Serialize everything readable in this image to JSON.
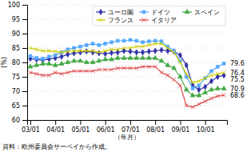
{
  "chart_data": {
    "type": "line",
    "xlabel": "（年月）",
    "ylabel": "(%)",
    "source": "資料：欧州委員会サーベイから作成。",
    "categories": [
      "03/01",
      null,
      null,
      null,
      "04/01",
      null,
      null,
      null,
      "05/01",
      null,
      null,
      null,
      "06/01",
      null,
      null,
      null,
      "07/01",
      null,
      null,
      null,
      "08/01",
      null,
      null,
      null,
      "09/01",
      null,
      null,
      null,
      "10/01",
      null,
      null,
      null
    ],
    "ylim": [
      60,
      100
    ],
    "yticks": [
      60,
      65,
      70,
      75,
      80,
      85,
      90,
      95,
      100
    ],
    "grid": true,
    "legend": "upper right",
    "series": [
      {
        "name": "ユーロ圏",
        "color": "#3333aa",
        "marker": "diamond",
        "values": [
          81.3,
          81.0,
          80.8,
          81.2,
          81.5,
          82.0,
          82.8,
          83.2,
          83.5,
          83.8,
          83.5,
          83.2,
          83.0,
          83.3,
          83.5,
          84.0,
          83.8,
          83.5,
          83.5,
          83.8,
          84.0,
          84.3,
          84.0,
          83.8,
          82.5,
          79.0,
          72.0,
          70.5,
          71.5,
          73.5,
          75.0,
          75.5
        ]
      },
      {
        "name": "ドイツ",
        "color": "#55aaff",
        "marker": "square",
        "values": [
          82.2,
          81.5,
          81.3,
          82.0,
          82.5,
          83.5,
          84.5,
          85.0,
          85.5,
          86.0,
          86.5,
          86.0,
          86.5,
          87.0,
          87.5,
          87.5,
          87.8,
          87.5,
          87.0,
          87.3,
          87.5,
          87.3,
          85.5,
          84.0,
          80.5,
          75.0,
          71.0,
          72.0,
          74.5,
          77.0,
          78.5,
          79.6
        ]
      },
      {
        "name": "スペイン",
        "color": "#44aa44",
        "marker": "triangle",
        "values": [
          78.5,
          79.0,
          79.5,
          79.5,
          79.0,
          79.5,
          80.0,
          80.5,
          80.5,
          80.0,
          80.0,
          80.5,
          81.0,
          81.0,
          81.5,
          81.5,
          81.5,
          81.5,
          81.5,
          81.5,
          81.5,
          80.5,
          79.0,
          78.0,
          75.0,
          70.5,
          68.5,
          68.5,
          69.5,
          70.5,
          70.9,
          70.9
        ]
      },
      {
        "name": "フランス",
        "color": "#cccc00",
        "marker": "x",
        "values": [
          85.0,
          84.5,
          84.0,
          84.0,
          83.8,
          83.5,
          83.8,
          84.0,
          84.0,
          84.0,
          84.0,
          83.5,
          84.0,
          84.5,
          84.5,
          85.0,
          85.0,
          85.5,
          85.5,
          86.0,
          86.5,
          86.5,
          85.0,
          83.5,
          80.0,
          76.0,
          73.0,
          73.5,
          74.5,
          75.5,
          76.0,
          76.4
        ]
      },
      {
        "name": "イタリア",
        "color": "#dd4444",
        "marker": "x",
        "values": [
          76.5,
          76.0,
          75.5,
          75.5,
          76.5,
          76.0,
          76.5,
          77.0,
          77.0,
          77.0,
          77.0,
          77.5,
          77.5,
          77.5,
          78.0,
          78.0,
          78.0,
          78.0,
          78.5,
          78.5,
          78.5,
          76.5,
          75.5,
          74.0,
          72.0,
          65.0,
          64.5,
          65.5,
          66.5,
          67.5,
          68.3,
          68.6
        ]
      }
    ],
    "annotations": [
      {
        "text": "79.6",
        "y": 79.6
      },
      {
        "text": "76.4",
        "y": 76.4
      },
      {
        "text": "75.5",
        "y": 75.5
      },
      {
        "text": "70.9",
        "y": 70.9
      },
      {
        "text": "68.6",
        "y": 68.6
      }
    ]
  }
}
